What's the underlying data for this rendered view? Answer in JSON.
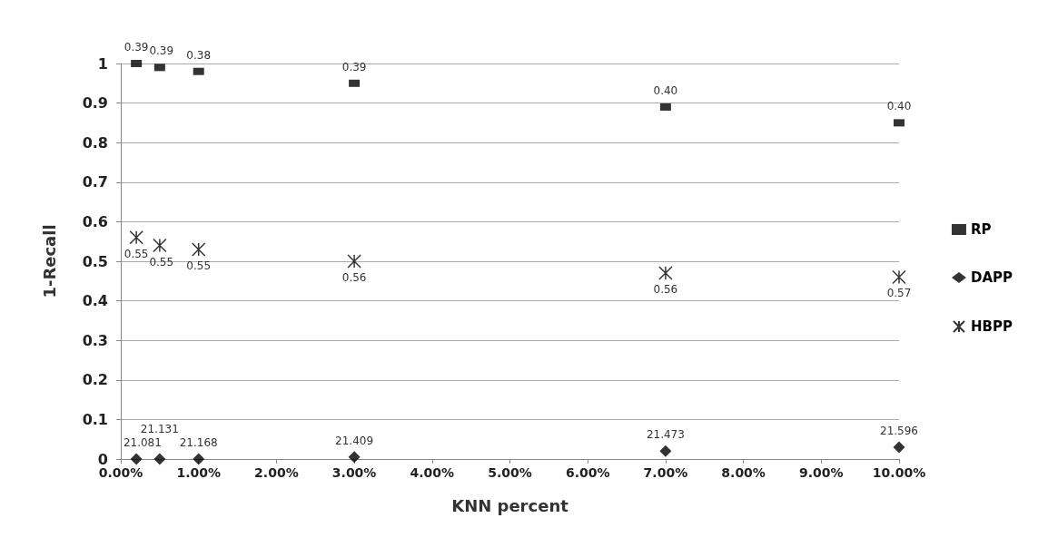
{
  "chart_data": {
    "type": "scatter",
    "xlabel": "KNN percent",
    "ylabel": "1-Recall",
    "x": [
      0.2,
      0.5,
      1,
      3,
      7,
      10
    ],
    "series": [
      {
        "name": "RP",
        "color": "#000000",
        "marker": "square",
        "values": [
          1.0,
          0.99,
          0.98,
          0.95,
          0.89,
          0.85
        ]
      },
      {
        "name": "DAPP",
        "color": "#000000",
        "marker": "diamond",
        "values": [
          0,
          0,
          0,
          0.005,
          0.02,
          0.03
        ]
      },
      {
        "name": "HBPP",
        "color": "#000000",
        "marker": "cross",
        "values": [
          0.56,
          0.54,
          0.53,
          0.5,
          0.47,
          0.46
        ]
      }
    ],
    "annotations": [
      {
        "text": "0.39",
        "x": 0.2,
        "y": 1.0
      },
      {
        "text": "0.39",
        "x": 0.5,
        "y": 0.99
      },
      {
        "text": "0.38",
        "x": 1,
        "y": 0.98
      },
      {
        "text": "0.39",
        "x": 3,
        "y": 0.95
      },
      {
        "text": "0.40",
        "x": 7,
        "y": 0.89
      },
      {
        "text": "0.40",
        "x": 10,
        "y": 0.85
      },
      {
        "text": "21.081",
        "x": 0.2,
        "y": 0
      },
      {
        "text": "21.131",
        "x": 0.5,
        "y": 0
      },
      {
        "text": "21.168",
        "x": 1,
        "y": 0
      },
      {
        "text": "21.409",
        "x": 3,
        "y": 0.005
      },
      {
        "text": "21.473",
        "x": 7,
        "y": 0.02
      },
      {
        "text": "21.596",
        "x": 10,
        "y": 0.03
      },
      {
        "text": "0.55",
        "x": 0.2,
        "y": 0.56
      },
      {
        "text": "0.55",
        "x": 0.5,
        "y": 0.54
      },
      {
        "text": "0.55",
        "x": 1,
        "y": 0.53
      },
      {
        "text": "0.56",
        "x": 3,
        "y": 0.5
      },
      {
        "text": "0.56",
        "x": 7,
        "y": 0.47
      },
      {
        "text": "0.57",
        "x": 10,
        "y": 0.46
      }
    ],
    "xlim": [
      0,
      10
    ],
    "xticks": [
      {
        "value": 0,
        "label": "0.00%"
      },
      {
        "value": 1,
        "label": "1.00%"
      },
      {
        "value": 2,
        "label": "2.00%"
      },
      {
        "value": 3,
        "label": "3.00%"
      },
      {
        "value": 4,
        "label": "4.00%"
      },
      {
        "value": 5,
        "label": "5.00%"
      },
      {
        "value": 6,
        "label": "6.00%"
      },
      {
        "value": 7,
        "label": "7.00%"
      },
      {
        "value": 8,
        "label": "8.00%"
      },
      {
        "value": 9,
        "label": "9.00%"
      },
      {
        "value": 10,
        "label": "10.00%"
      }
    ],
    "ylim": [
      0,
      1
    ],
    "yticks": [
      0,
      0.1,
      0.2,
      0.3,
      0.4,
      0.5,
      0.6,
      0.7,
      0.8,
      0.9,
      1
    ],
    "grid": "y",
    "legend": "right"
  }
}
